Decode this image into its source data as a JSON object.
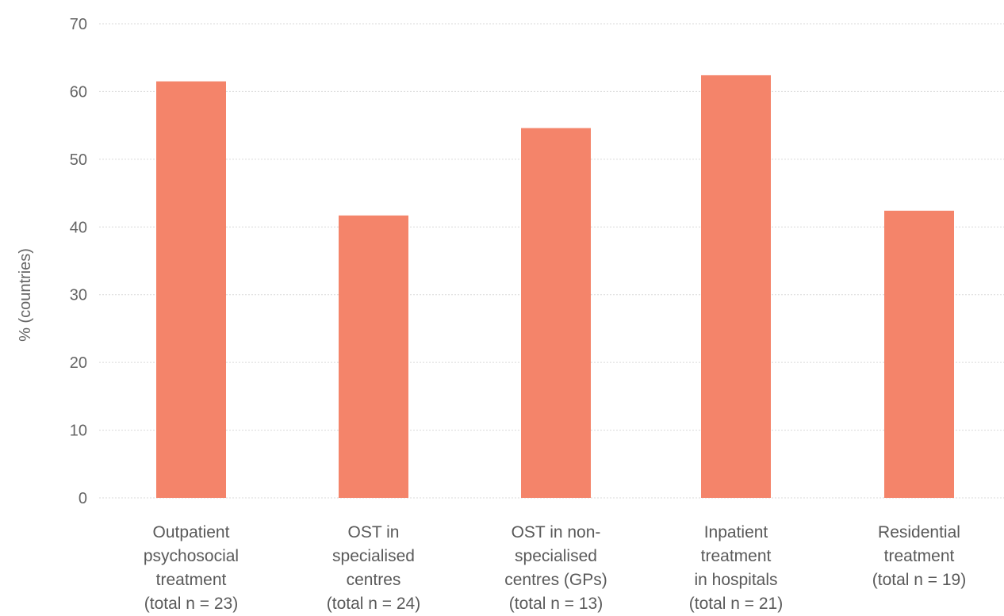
{
  "chart_data": {
    "type": "bar",
    "title": "",
    "xlabel": "",
    "ylabel": "% (countries)",
    "ylim": [
      0,
      70
    ],
    "yticks": [
      0,
      10,
      20,
      30,
      40,
      50,
      60,
      70
    ],
    "grid": true,
    "legend": "none",
    "bar_color": "#f4846a",
    "categories": [
      [
        "Outpatient",
        "psychosocial",
        "treatment",
        "(total n = 23)"
      ],
      [
        "OST in",
        "specialised",
        "centres",
        "(total n = 24)"
      ],
      [
        "OST in non-",
        "specialised",
        "centres (GPs)",
        "(total n = 13)"
      ],
      [
        "Inpatient",
        "treatment",
        "in hospitals",
        "(total n = 21)"
      ],
      [
        "Residential",
        "treatment",
        "(total n = 19)"
      ]
    ],
    "values": [
      61.5,
      41.7,
      54.6,
      62.4,
      42.4
    ]
  }
}
